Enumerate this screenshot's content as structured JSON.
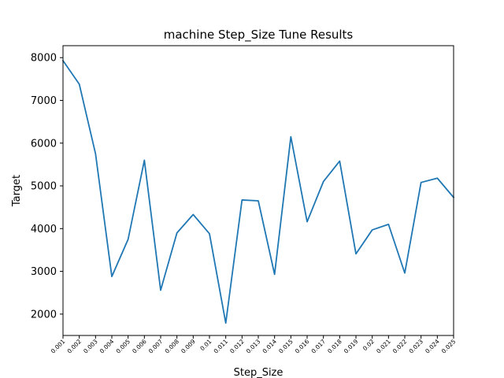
{
  "chart_data": {
    "type": "line",
    "title": "machine Step_Size Tune Results",
    "xlabel": "Step_Size",
    "ylabel": "Target",
    "categories": [
      "0.001",
      "0.002",
      "0.003",
      "0.004",
      "0.005",
      "0.006",
      "0.007",
      "0.008",
      "0.009",
      "0.01",
      "0.011",
      "0.012",
      "0.013",
      "0.014",
      "0.015",
      "0.016",
      "0.017",
      "0.018",
      "0.019",
      "0.02",
      "0.021",
      "0.022",
      "0.023",
      "0.024",
      "0.025"
    ],
    "y_ticks": [
      2000,
      3000,
      4000,
      5000,
      6000,
      7000,
      8000
    ],
    "y_tick_labels": [
      "2000",
      "3000",
      "4000",
      "5000",
      "6000",
      "7000",
      "8000"
    ],
    "ylim": [
      1500,
      8280
    ],
    "grid": false,
    "series": [
      {
        "values": [
          7930,
          7380,
          5750,
          2880,
          3750,
          5600,
          2560,
          3900,
          4330,
          3880,
          1790,
          4670,
          4650,
          2930,
          6150,
          4160,
          5100,
          5580,
          3410,
          3970,
          4100,
          2960,
          5080,
          5180,
          4730
        ],
        "color": "#1f77b4"
      }
    ]
  }
}
